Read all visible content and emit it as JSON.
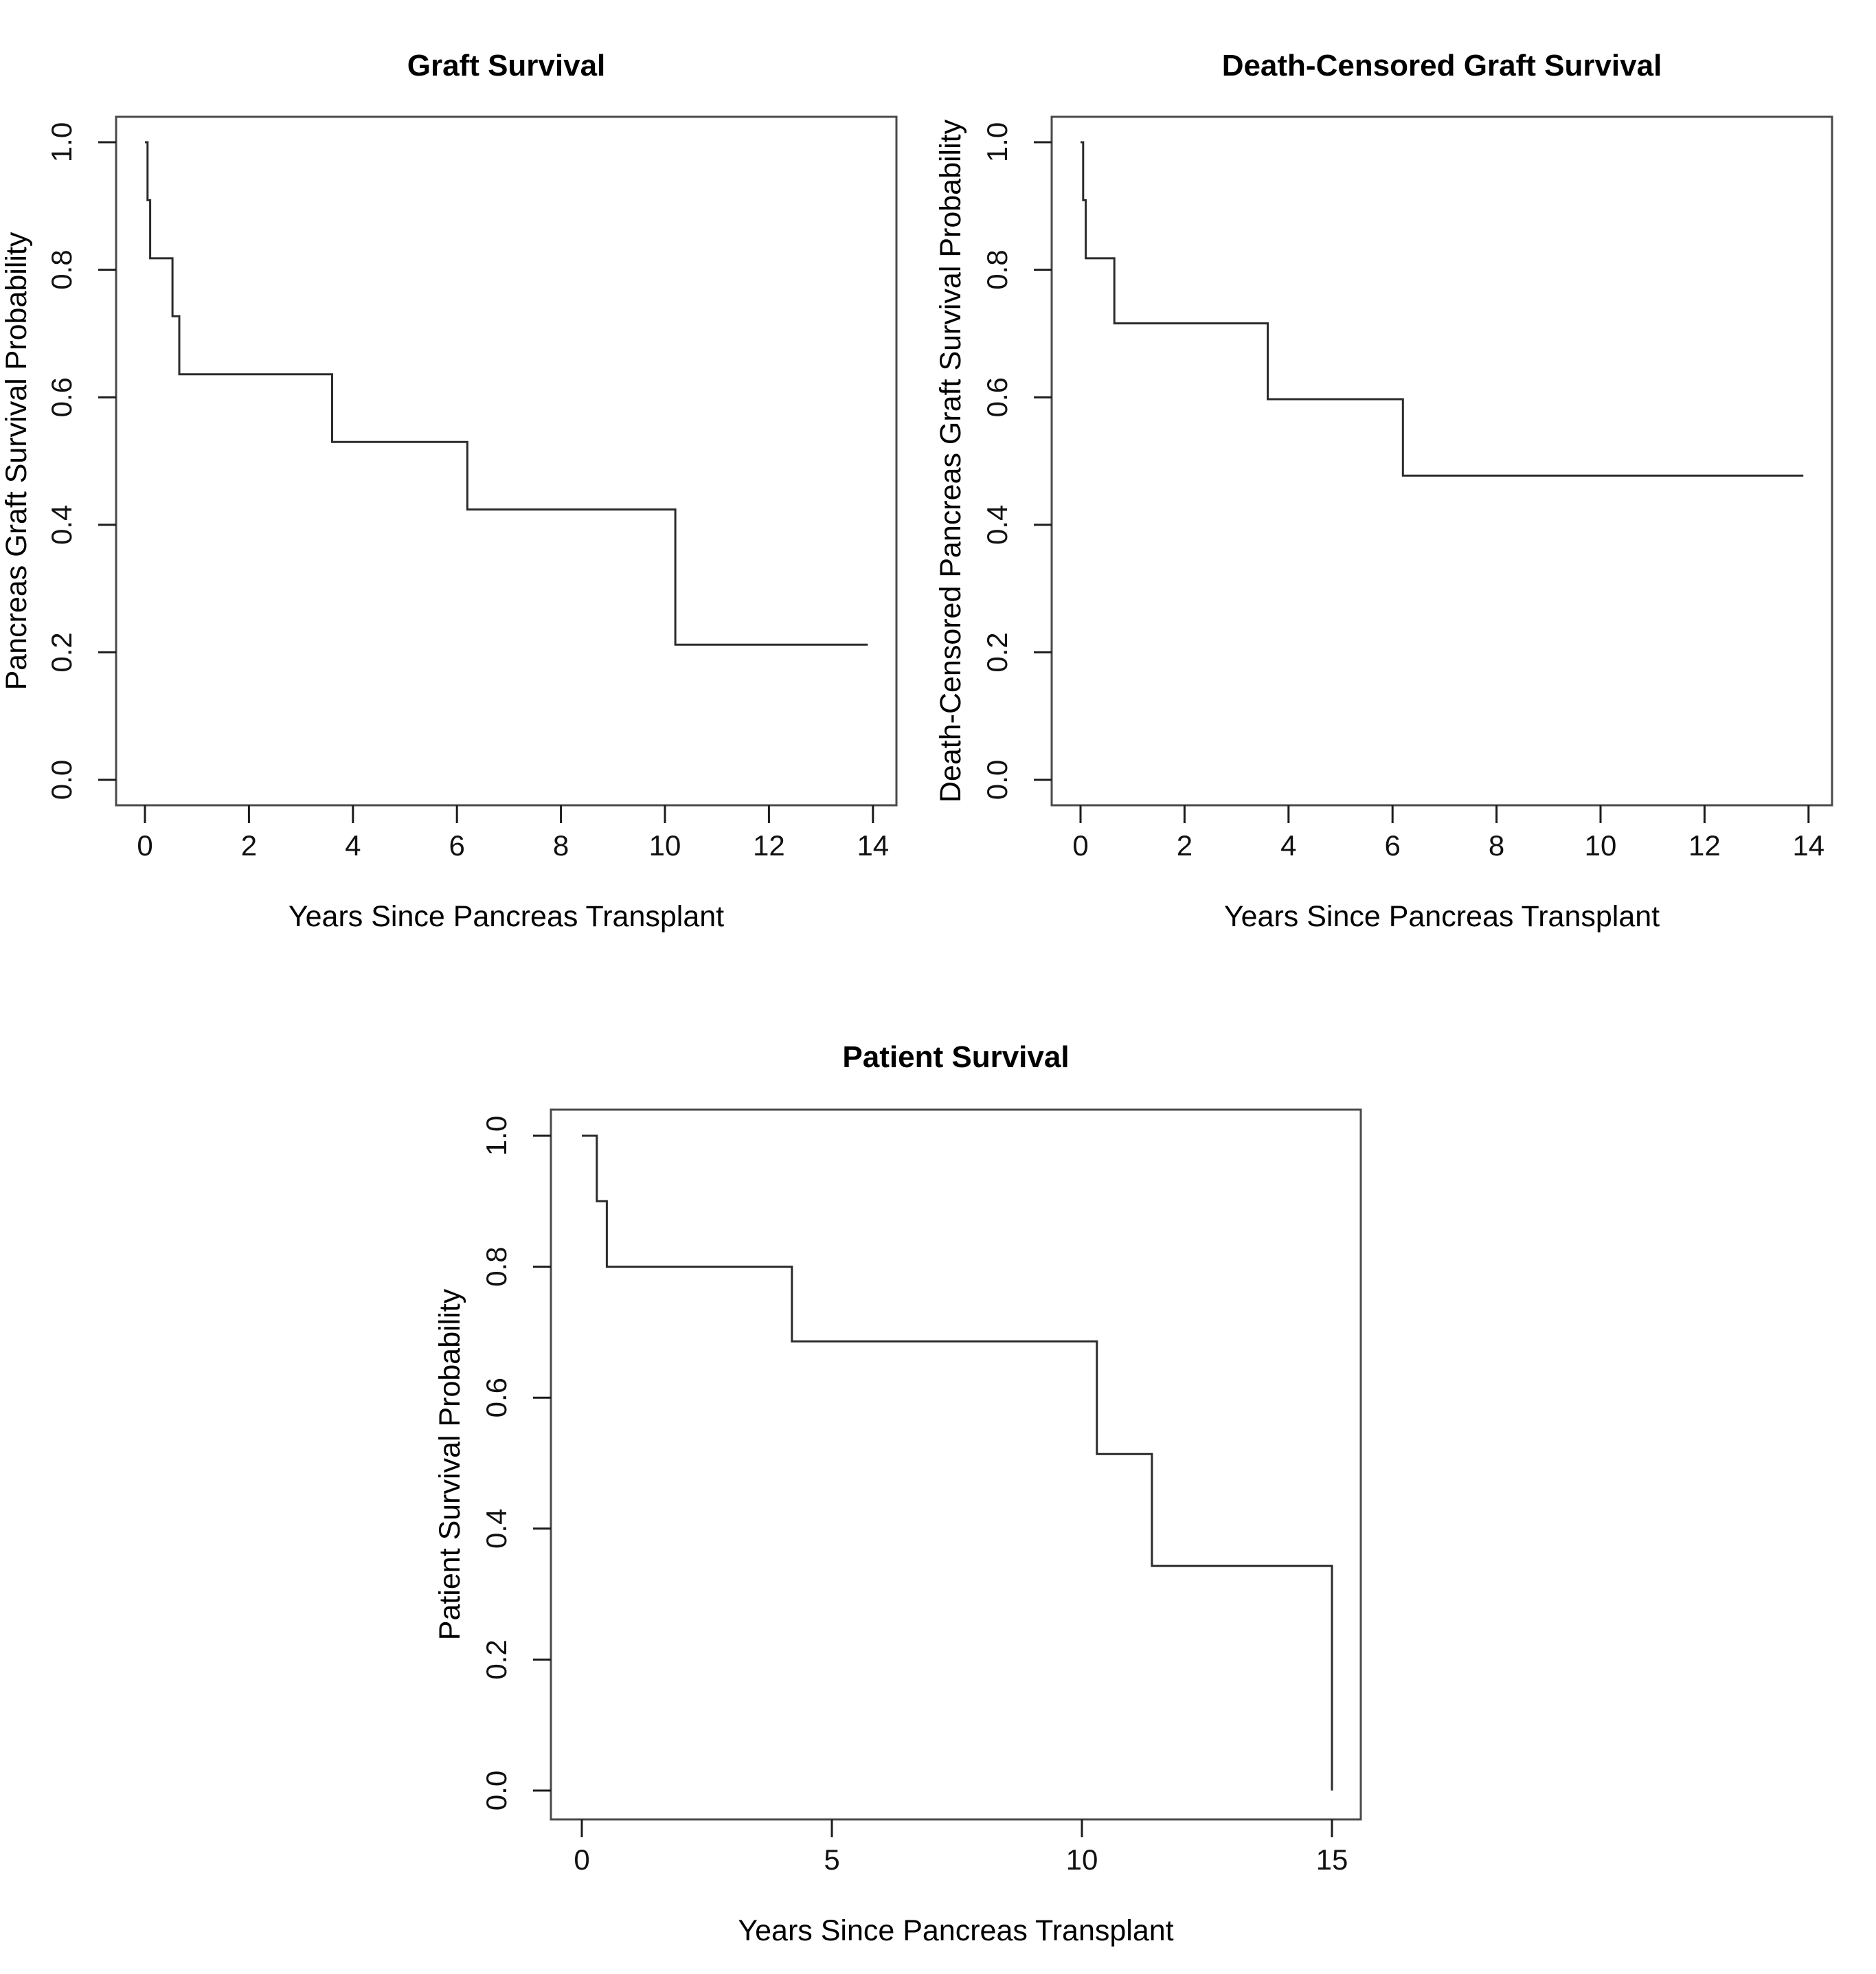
{
  "page": {
    "background_color": "#ffffff",
    "figure_description": "Three Kaplan-Meier step plots of pancreas transplant outcomes"
  },
  "chart_data": [
    {
      "type": "line",
      "subtype": "kaplan-meier-step",
      "title": "Graft Survival",
      "xlabel": "Years Since Pancreas Transplant",
      "ylabel": "Pancreas Graft Survival Probability",
      "xlim": [
        0,
        14
      ],
      "ylim": [
        0.0,
        1.0
      ],
      "xticks": [
        "0",
        "2",
        "4",
        "6",
        "8",
        "10",
        "12",
        "14"
      ],
      "xtick_values": [
        0,
        2,
        4,
        6,
        8,
        10,
        12,
        14
      ],
      "yticks": [
        "0.0",
        "0.2",
        "0.4",
        "0.6",
        "0.8",
        "1.0"
      ],
      "ytick_values": [
        0.0,
        0.2,
        0.4,
        0.6,
        0.8,
        1.0
      ],
      "grid": false,
      "legend": null,
      "line_color": "#2b2b2b",
      "box_color": "#4a4a4a",
      "points": [
        [
          0.0,
          1.0
        ],
        [
          0.05,
          0.909
        ],
        [
          0.1,
          0.818
        ],
        [
          0.53,
          0.727
        ],
        [
          0.66,
          0.636
        ],
        [
          3.6,
          0.53
        ],
        [
          6.2,
          0.424
        ],
        [
          10.2,
          0.212
        ]
      ],
      "curve_end_x": 13.9
    },
    {
      "type": "line",
      "subtype": "kaplan-meier-step",
      "title": "Death-Censored Graft Survival",
      "xlabel": "Years Since Pancreas Transplant",
      "ylabel": "Death-Censored Pancreas Graft Survival Probability",
      "xlim": [
        0,
        14
      ],
      "ylim": [
        0.0,
        1.0
      ],
      "xticks": [
        "0",
        "2",
        "4",
        "6",
        "8",
        "10",
        "12",
        "14"
      ],
      "xtick_values": [
        0,
        2,
        4,
        6,
        8,
        10,
        12,
        14
      ],
      "yticks": [
        "0.0",
        "0.2",
        "0.4",
        "0.6",
        "0.8",
        "1.0"
      ],
      "ytick_values": [
        0.0,
        0.2,
        0.4,
        0.6,
        0.8,
        1.0
      ],
      "grid": false,
      "legend": null,
      "line_color": "#2b2b2b",
      "box_color": "#4a4a4a",
      "points": [
        [
          0.0,
          1.0
        ],
        [
          0.05,
          0.909
        ],
        [
          0.1,
          0.818
        ],
        [
          0.65,
          0.716
        ],
        [
          3.6,
          0.597
        ],
        [
          6.2,
          0.477
        ]
      ],
      "curve_end_x": 13.9
    },
    {
      "type": "line",
      "subtype": "kaplan-meier-step",
      "title": "Patient Survival",
      "xlabel": "Years Since Pancreas Transplant",
      "ylabel": "Patient Survival Probability",
      "xlim": [
        0,
        15
      ],
      "ylim": [
        0.0,
        1.0
      ],
      "xticks": [
        "0",
        "5",
        "10",
        "15"
      ],
      "xtick_values": [
        0,
        5,
        10,
        15
      ],
      "yticks": [
        "0.0",
        "0.2",
        "0.4",
        "0.6",
        "0.8",
        "1.0"
      ],
      "ytick_values": [
        0.0,
        0.2,
        0.4,
        0.6,
        0.8,
        1.0
      ],
      "grid": false,
      "legend": null,
      "line_color": "#2b2b2b",
      "box_color": "#4a4a4a",
      "points": [
        [
          0.0,
          1.0
        ],
        [
          0.3,
          0.9
        ],
        [
          0.5,
          0.8
        ],
        [
          4.2,
          0.686
        ],
        [
          10.3,
          0.514
        ],
        [
          11.4,
          0.343
        ],
        [
          15.0,
          0.0
        ]
      ],
      "curve_end_x": 15.0
    }
  ]
}
